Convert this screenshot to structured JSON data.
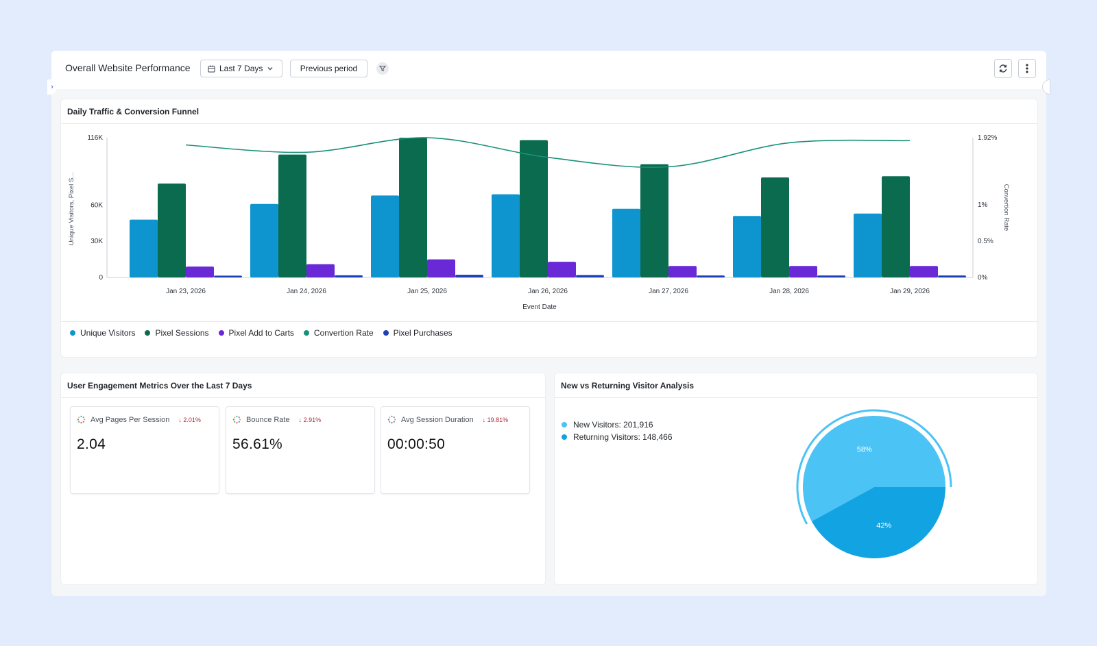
{
  "header": {
    "title": "Overall Website Performance",
    "range_label": "Last 7 Days",
    "compare_label": "Previous period"
  },
  "traffic": {
    "title": "Daily Traffic & Conversion Funnel"
  },
  "chart_data": {
    "type": "bar",
    "title": "Daily Traffic & Conversion Funnel",
    "xlabel": "Event Date",
    "ylabel": "Unique Visitors, Pixel S...",
    "y2label": "Convertion Rate",
    "categories": [
      "Jan 23, 2026",
      "Jan 24, 2026",
      "Jan 25, 2026",
      "Jan 26, 2026",
      "Jan 27, 2026",
      "Jan 28, 2026",
      "Jan 29, 2026"
    ],
    "ylim": [
      0,
      116000
    ],
    "yticks": [
      {
        "value": 0,
        "label": "0"
      },
      {
        "value": 30000,
        "label": "30K"
      },
      {
        "value": 60000,
        "label": "60K"
      },
      {
        "value": 116000,
        "label": "116K"
      }
    ],
    "y2lim": [
      0,
      1.92
    ],
    "y2ticks": [
      {
        "value": 0,
        "label": "0%"
      },
      {
        "value": 0.5,
        "label": "0.5%"
      },
      {
        "value": 1,
        "label": "1%"
      },
      {
        "value": 1.92,
        "label": "1.92%"
      }
    ],
    "series": [
      {
        "name": "Unique Visitors",
        "color": "#0e94cf",
        "values": [
          48000,
          61000,
          68000,
          69000,
          57000,
          51000,
          53000
        ]
      },
      {
        "name": "Pixel Sessions",
        "color": "#0b6b4f",
        "values": [
          78000,
          102000,
          116000,
          114000,
          94000,
          83000,
          84000
        ]
      },
      {
        "name": "Pixel Add to Carts",
        "color": "#6929d6",
        "values": [
          9000,
          11000,
          15000,
          13000,
          9500,
          9500,
          9500
        ]
      },
      {
        "name": "Pixel Purchases",
        "color": "#1d3fb8",
        "values": [
          1500,
          1800,
          2200,
          2000,
          1600,
          1600,
          1600
        ]
      }
    ],
    "line_series": {
      "name": "Convertion Rate",
      "color": "#179178",
      "axis": "right",
      "values": [
        1.82,
        1.72,
        1.92,
        1.65,
        1.52,
        1.85,
        1.88
      ]
    },
    "legend": [
      {
        "name": "Unique Visitors",
        "color": "#0e94cf"
      },
      {
        "name": "Pixel Sessions",
        "color": "#0b6b4f"
      },
      {
        "name": "Pixel Add to Carts",
        "color": "#6929d6"
      },
      {
        "name": "Convertion Rate",
        "color": "#179178"
      },
      {
        "name": "Pixel Purchases",
        "color": "#1d3fb8"
      }
    ]
  },
  "engagement": {
    "title": "User Engagement Metrics Over the Last 7 Days",
    "metrics": [
      {
        "label": "Avg Pages Per Session",
        "delta": "2.01%",
        "value": "2.04"
      },
      {
        "label": "Bounce Rate",
        "delta": "2.91%",
        "value": "56.61%"
      },
      {
        "label": "Avg Session Duration",
        "delta": "19.81%",
        "value": "00:00:50"
      }
    ]
  },
  "visitors": {
    "title": "New vs Returning Visitor Analysis",
    "legend": [
      {
        "label": "New Visitors: 201,916",
        "color": "#4cc3f5"
      },
      {
        "label": "Returning Visitors: 148,466",
        "color": "#12a3e2"
      }
    ],
    "slices": [
      {
        "name": "New Visitors",
        "value": 58,
        "label": "58%",
        "color": "#4cc3f5"
      },
      {
        "name": "Returning Visitors",
        "value": 42,
        "label": "42%",
        "color": "#12a3e2"
      }
    ]
  }
}
